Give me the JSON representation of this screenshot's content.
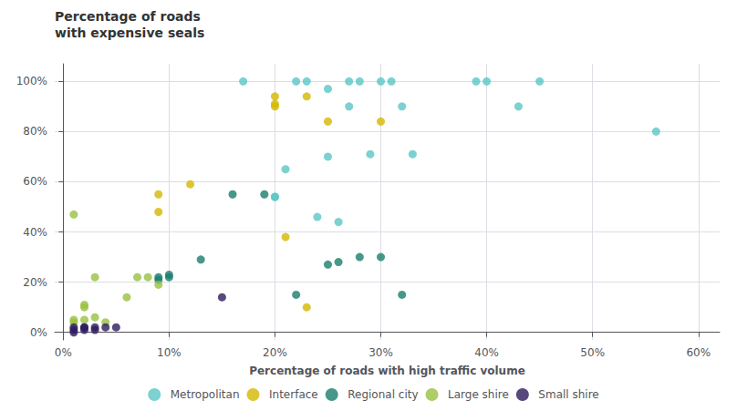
{
  "chart_data": {
    "type": "scatter",
    "title": "Percentage of roads",
    "subtitle": "with expensive seals",
    "xlabel": "Percentage of roads with high traffic volume",
    "grid": true,
    "legend": "bottom",
    "xlim": [
      -0.008,
      0.62
    ],
    "ylim": [
      -0.03,
      1.07
    ],
    "xticks": [
      {
        "value": 0.0,
        "label": "0%"
      },
      {
        "value": 0.1,
        "label": "10%"
      },
      {
        "value": 0.2,
        "label": "20%"
      },
      {
        "value": 0.3,
        "label": "30%"
      },
      {
        "value": 0.4,
        "label": "40%"
      },
      {
        "value": 0.5,
        "label": "50%"
      },
      {
        "value": 0.6,
        "label": "60%"
      }
    ],
    "yticks": [
      {
        "value": 0.0,
        "label": "0%"
      },
      {
        "value": 0.2,
        "label": "20%"
      },
      {
        "value": 0.4,
        "label": "40%"
      },
      {
        "value": 0.6,
        "label": "60%"
      },
      {
        "value": 0.8,
        "label": "80%"
      },
      {
        "value": 1.0,
        "label": "100%"
      }
    ],
    "series": [
      {
        "name": "Metropolitan",
        "color": "#5bc5c5",
        "values": [
          [
            0.17,
            1.0
          ],
          [
            0.22,
            1.0
          ],
          [
            0.23,
            1.0
          ],
          [
            0.27,
            1.0
          ],
          [
            0.28,
            1.0
          ],
          [
            0.3,
            1.0
          ],
          [
            0.31,
            1.0
          ],
          [
            0.39,
            1.0
          ],
          [
            0.4,
            1.0
          ],
          [
            0.45,
            1.0
          ],
          [
            0.56,
            0.8
          ],
          [
            0.25,
            0.97
          ],
          [
            0.27,
            0.9
          ],
          [
            0.32,
            0.9
          ],
          [
            0.43,
            0.9
          ],
          [
            0.25,
            0.7
          ],
          [
            0.29,
            0.71
          ],
          [
            0.33,
            0.71
          ],
          [
            0.21,
            0.65
          ],
          [
            0.2,
            0.54
          ],
          [
            0.2,
            0.54
          ],
          [
            0.24,
            0.46
          ],
          [
            0.26,
            0.44
          ]
        ]
      },
      {
        "name": "Interface",
        "color": "#d4b800",
        "values": [
          [
            0.2,
            0.94
          ],
          [
            0.2,
            0.9
          ],
          [
            0.2,
            0.91
          ],
          [
            0.23,
            0.94
          ],
          [
            0.25,
            0.84
          ],
          [
            0.3,
            0.84
          ],
          [
            0.09,
            0.55
          ],
          [
            0.12,
            0.59
          ],
          [
            0.09,
            0.48
          ],
          [
            0.21,
            0.38
          ],
          [
            0.23,
            0.1
          ]
        ]
      },
      {
        "name": "Regional city",
        "color": "#1a7d6e",
        "values": [
          [
            0.09,
            0.22
          ],
          [
            0.09,
            0.21
          ],
          [
            0.1,
            0.23
          ],
          [
            0.1,
            0.22
          ],
          [
            0.13,
            0.29
          ],
          [
            0.16,
            0.55
          ],
          [
            0.19,
            0.55
          ],
          [
            0.22,
            0.15
          ],
          [
            0.25,
            0.27
          ],
          [
            0.26,
            0.28
          ],
          [
            0.28,
            0.3
          ],
          [
            0.3,
            0.3
          ],
          [
            0.32,
            0.15
          ]
        ]
      },
      {
        "name": "Large shire",
        "color": "#99c140",
        "values": [
          [
            0.01,
            0.47
          ],
          [
            0.03,
            0.22
          ],
          [
            0.06,
            0.14
          ],
          [
            0.07,
            0.22
          ],
          [
            0.08,
            0.22
          ],
          [
            0.09,
            0.19
          ],
          [
            0.01,
            0.05
          ],
          [
            0.01,
            0.04
          ],
          [
            0.02,
            0.1
          ],
          [
            0.02,
            0.11
          ],
          [
            0.02,
            0.05
          ],
          [
            0.03,
            0.06
          ],
          [
            0.04,
            0.04
          ]
        ]
      },
      {
        "name": "Small shire",
        "color": "#2d1b5e",
        "values": [
          [
            0.15,
            0.14
          ],
          [
            0.01,
            0.0
          ],
          [
            0.01,
            0.01
          ],
          [
            0.01,
            0.02
          ],
          [
            0.02,
            0.01
          ],
          [
            0.02,
            0.02
          ],
          [
            0.02,
            0.02
          ],
          [
            0.03,
            0.02
          ],
          [
            0.03,
            0.01
          ],
          [
            0.04,
            0.02
          ],
          [
            0.05,
            0.02
          ]
        ]
      }
    ]
  }
}
